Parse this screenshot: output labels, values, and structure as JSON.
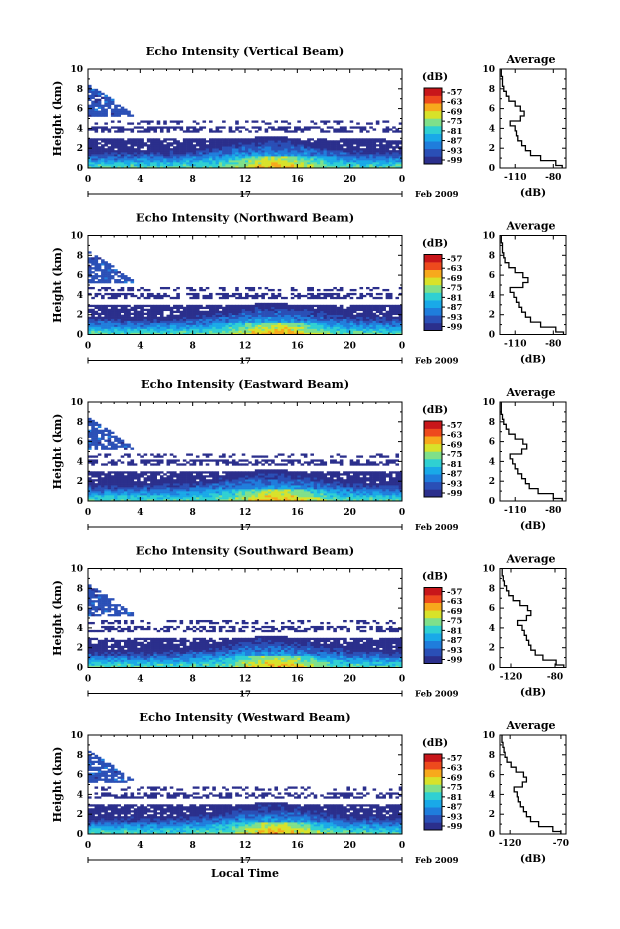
{
  "chart_data": [
    {
      "type": "heatmap",
      "title": "Echo Intensity (Vertical Beam)",
      "ylabel": "Height (km)",
      "ylim": [
        0,
        10
      ],
      "yticks": [
        "0",
        "2",
        "4",
        "6",
        "8",
        "10"
      ],
      "xlim": [
        0,
        24
      ],
      "xticks": [
        "0",
        "4",
        "8",
        "12",
        "16",
        "20",
        "0"
      ],
      "date_label": "17",
      "date_suffix": "Feb 2009",
      "colorbar": {
        "unit": "(dB)",
        "ticks": [
          "-57",
          "-63",
          "-69",
          "-75",
          "-81",
          "-87",
          "-93",
          "-99"
        ],
        "range": [
          -99,
          -57
        ]
      },
      "profile": {
        "title": "Average",
        "xlabel": "(dB)",
        "xticks": [
          "-110",
          "-80"
        ],
        "xlim": [
          -122,
          -70
        ],
        "ylim": [
          0,
          10
        ],
        "heights": [
          0,
          0.5,
          1,
          1.5,
          2,
          2.5,
          3,
          3.5,
          4,
          4.5,
          5,
          5.5,
          6,
          6.5,
          7,
          7.5,
          8,
          8.5,
          9,
          9.5,
          10
        ],
        "values": [
          -73,
          -78,
          -90,
          -98,
          -102,
          -105,
          -108,
          -109,
          -110,
          -114,
          -106,
          -103,
          -106,
          -110,
          -115,
          -117,
          -119,
          -120,
          -120,
          -121,
          -121
        ]
      }
    },
    {
      "type": "heatmap",
      "title": "Echo Intensity (Northward Beam)",
      "ylabel": "Height (km)",
      "ylim": [
        0,
        10
      ],
      "yticks": [
        "0",
        "2",
        "4",
        "6",
        "8",
        "10"
      ],
      "xlim": [
        0,
        24
      ],
      "xticks": [
        "0",
        "4",
        "8",
        "12",
        "16",
        "20",
        "0"
      ],
      "date_label": "17",
      "date_suffix": "Feb 2009",
      "colorbar": {
        "unit": "(dB)",
        "ticks": [
          "-57",
          "-63",
          "-69",
          "-75",
          "-81",
          "-87",
          "-93",
          "-99"
        ],
        "range": [
          -99,
          -57
        ]
      },
      "profile": {
        "title": "Average",
        "xlabel": "(dB)",
        "xticks": [
          "-110",
          "-80"
        ],
        "xlim": [
          -122,
          -70
        ],
        "ylim": [
          0,
          10
        ],
        "heights": [
          0,
          0.5,
          1,
          1.5,
          2,
          2.5,
          3,
          3.5,
          4,
          4.5,
          5,
          5.5,
          6,
          6.5,
          7,
          7.5,
          8,
          8.5,
          9,
          9.5,
          10
        ],
        "values": [
          -72,
          -78,
          -90,
          -98,
          -102,
          -105,
          -107,
          -109,
          -111,
          -114,
          -104,
          -100,
          -104,
          -110,
          -115,
          -118,
          -119,
          -120,
          -120,
          -121,
          -121
        ]
      }
    },
    {
      "type": "heatmap",
      "title": "Echo Intensity (Eastward Beam)",
      "ylabel": "Height (km)",
      "ylim": [
        0,
        10
      ],
      "yticks": [
        "0",
        "2",
        "4",
        "6",
        "8",
        "10"
      ],
      "xlim": [
        0,
        24
      ],
      "xticks": [
        "0",
        "4",
        "8",
        "12",
        "16",
        "20",
        "0"
      ],
      "date_label": "17",
      "date_suffix": "Feb 2009",
      "colorbar": {
        "unit": "(dB)",
        "ticks": [
          "-57",
          "-63",
          "-69",
          "-75",
          "-81",
          "-87",
          "-93",
          "-99"
        ],
        "range": [
          -99,
          -57
        ]
      },
      "profile": {
        "title": "Average",
        "xlabel": "(dB)",
        "xticks": [
          "-110",
          "-80"
        ],
        "xlim": [
          -122,
          -70
        ],
        "ylim": [
          0,
          10
        ],
        "heights": [
          0,
          0.5,
          1,
          1.5,
          2,
          2.5,
          3,
          3.5,
          4,
          4.5,
          5,
          5.5,
          6,
          6.5,
          7,
          7.5,
          8,
          8.5,
          9,
          9.5,
          10
        ],
        "values": [
          -73,
          -80,
          -92,
          -99,
          -102,
          -105,
          -108,
          -110,
          -112,
          -114,
          -105,
          -101,
          -104,
          -110,
          -115,
          -117,
          -119,
          -120,
          -121,
          -121,
          -121
        ]
      }
    },
    {
      "type": "heatmap",
      "title": "Echo Intensity (Southward Beam)",
      "ylabel": "Height (km)",
      "ylim": [
        0,
        10
      ],
      "yticks": [
        "0",
        "2",
        "4",
        "6",
        "8",
        "10"
      ],
      "xlim": [
        0,
        24
      ],
      "xticks": [
        "0",
        "4",
        "8",
        "12",
        "16",
        "20",
        "0"
      ],
      "date_label": "17",
      "date_suffix": "Feb 2009",
      "colorbar": {
        "unit": "(dB)",
        "ticks": [
          "-57",
          "-63",
          "-69",
          "-75",
          "-81",
          "-87",
          "-93",
          "-99"
        ],
        "range": [
          -99,
          -57
        ]
      },
      "profile": {
        "title": "Average",
        "xlabel": "(dB)",
        "xticks": [
          "-120",
          "-80"
        ],
        "xlim": [
          -130,
          -70
        ],
        "ylim": [
          0,
          10
        ],
        "heights": [
          0,
          0.5,
          1,
          1.5,
          2,
          2.5,
          3,
          3.5,
          4,
          4.5,
          5,
          5.5,
          6,
          6.5,
          7,
          7.5,
          8,
          8.5,
          9,
          9.5,
          10
        ],
        "values": [
          -72,
          -79,
          -91,
          -98,
          -102,
          -104,
          -106,
          -108,
          -110,
          -114,
          -106,
          -102,
          -105,
          -112,
          -118,
          -122,
          -124,
          -126,
          -127,
          -128,
          -128
        ]
      }
    },
    {
      "type": "heatmap",
      "title": "Echo Intensity (Westward Beam)",
      "ylabel": "Height (km)",
      "ylim": [
        0,
        10
      ],
      "yticks": [
        "0",
        "2",
        "4",
        "6",
        "8",
        "10"
      ],
      "xlim": [
        0,
        24
      ],
      "xticks": [
        "0",
        "4",
        "8",
        "12",
        "16",
        "20",
        "0"
      ],
      "date_label": "17",
      "date_suffix": "Feb 2009",
      "colorbar": {
        "unit": "(dB)",
        "ticks": [
          "-57",
          "-63",
          "-69",
          "-75",
          "-81",
          "-87",
          "-93",
          "-99"
        ],
        "range": [
          -99,
          -57
        ]
      },
      "profile": {
        "title": "Average",
        "xlabel": "(dB)",
        "xticks": [
          "-120",
          "-70"
        ],
        "xlim": [
          -130,
          -65
        ],
        "ylim": [
          0,
          10
        ],
        "heights": [
          0,
          0.5,
          1,
          1.5,
          2,
          2.5,
          3,
          3.5,
          4,
          4.5,
          5,
          5.5,
          6,
          6.5,
          7,
          7.5,
          8,
          8.5,
          9,
          9.5,
          10
        ],
        "values": [
          -70,
          -78,
          -92,
          -100,
          -104,
          -107,
          -110,
          -112,
          -113,
          -116,
          -108,
          -104,
          -107,
          -114,
          -119,
          -123,
          -125,
          -126,
          -127,
          -128,
          -128
        ]
      }
    }
  ],
  "xlabel": "Local Time",
  "colors": {
    "colormap": [
      "#2b2f8c",
      "#2a4fb6",
      "#1f7ddc",
      "#19a9e8",
      "#2fd0d2",
      "#7fe08a",
      "#d8e22a",
      "#f7a91c",
      "#ee4a1d",
      "#c8161a"
    ]
  }
}
